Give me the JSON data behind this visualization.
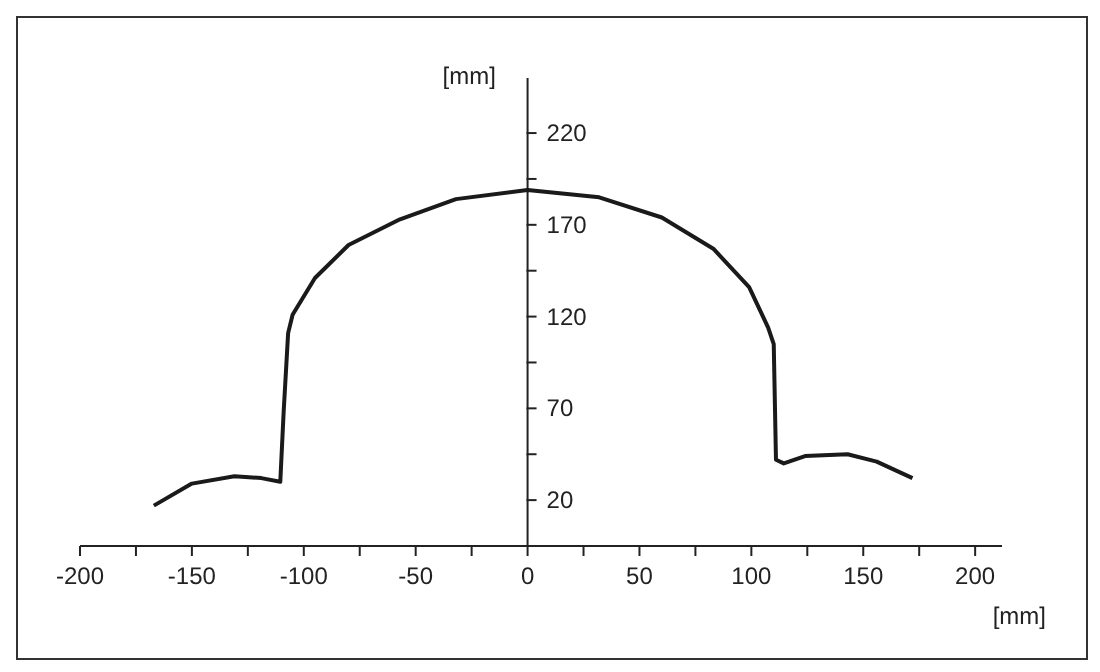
{
  "chart_data": {
    "type": "line",
    "xlabel": "[mm]",
    "ylabel": "[mm]",
    "x": [
      -167,
      -150,
      -131,
      -119,
      -110.5,
      -109,
      -107,
      -105,
      -95,
      -80,
      -57,
      -32,
      0,
      32,
      60,
      83,
      99,
      107.5,
      110,
      111,
      114.5,
      124,
      143,
      156,
      172
    ],
    "series": [
      {
        "color": "#1a1a1a",
        "values": [
          17,
          29,
          33,
          32,
          30,
          68,
          111,
          121,
          141,
          159,
          173,
          184,
          189,
          185,
          174,
          157,
          136,
          114,
          105,
          42,
          40,
          44,
          45,
          41,
          32
        ]
      }
    ],
    "xlim": [
      -200,
      212
    ],
    "ylim": [
      -5,
      250
    ],
    "xticks": [
      -200,
      {
        "value": -175,
        "label": null
      },
      -150,
      {
        "value": -125,
        "label": null
      },
      -100,
      {
        "value": -75,
        "label": null
      },
      -50,
      {
        "value": -25,
        "label": null
      },
      0,
      {
        "value": 25,
        "label": null
      },
      50,
      {
        "value": 75,
        "label": null
      },
      100,
      {
        "value": 125,
        "label": null
      },
      150,
      {
        "value": 175,
        "label": null
      },
      200
    ],
    "yticks": [
      {
        "value": -5,
        "label": null
      },
      20,
      {
        "value": 45,
        "label": null
      },
      70,
      {
        "value": 95,
        "label": null
      },
      120,
      {
        "value": 145,
        "label": null
      },
      170,
      {
        "value": 195,
        "label": null
      },
      220
    ],
    "grid": false,
    "legend": false,
    "marker": "none",
    "line_style": "solid"
  }
}
